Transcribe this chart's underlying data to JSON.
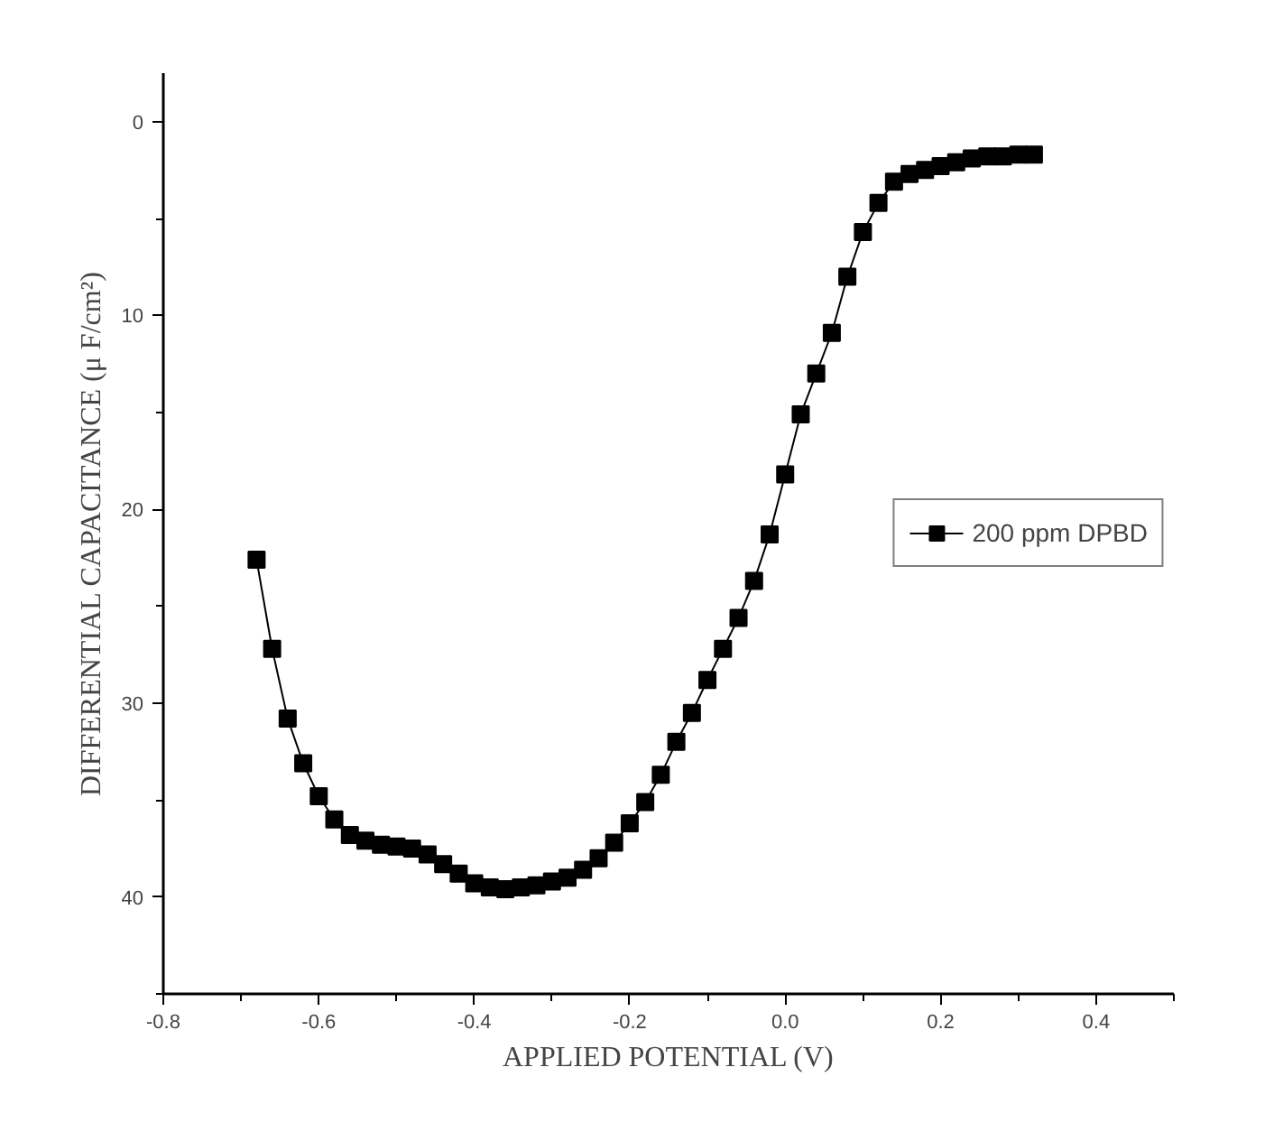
{
  "chart_data": {
    "type": "line",
    "xlabel": "APPLIED POTENTIAL (V)",
    "ylabel": "DIFFERENTIAL CAPACITANCE (μ F/cm²)",
    "x": [
      -0.68,
      -0.66,
      -0.64,
      -0.62,
      -0.6,
      -0.58,
      -0.56,
      -0.54,
      -0.52,
      -0.5,
      -0.48,
      -0.46,
      -0.44,
      -0.42,
      -0.4,
      -0.38,
      -0.36,
      -0.34,
      -0.32,
      -0.3,
      -0.28,
      -0.26,
      -0.24,
      -0.22,
      -0.2,
      -0.18,
      -0.16,
      -0.14,
      -0.12,
      -0.1,
      -0.08,
      -0.06,
      -0.04,
      -0.02,
      0.0,
      0.02,
      0.04,
      0.06,
      0.08,
      0.1,
      0.12,
      0.14,
      0.16,
      0.18,
      0.2,
      0.22,
      0.24,
      0.26,
      0.28,
      0.3,
      0.32
    ],
    "series": [
      {
        "name": "200 ppm DPBD",
        "color": "#000000",
        "values": [
          22.6,
          27.2,
          30.8,
          33.1,
          34.8,
          36.0,
          36.8,
          37.1,
          37.3,
          37.4,
          37.5,
          37.8,
          38.3,
          38.8,
          39.3,
          39.5,
          39.6,
          39.5,
          39.4,
          39.2,
          39.0,
          38.6,
          38.0,
          37.2,
          36.2,
          35.1,
          33.7,
          32.0,
          30.5,
          28.8,
          27.2,
          25.6,
          23.7,
          21.3,
          18.2,
          15.1,
          13.0,
          10.9,
          8.0,
          5.7,
          4.2,
          3.1,
          2.7,
          2.5,
          2.3,
          2.1,
          1.9,
          1.8,
          1.8,
          1.7,
          1.7
        ]
      }
    ],
    "xlim": [
      -0.8,
      0.5
    ],
    "xticks": [
      -0.8,
      -0.6,
      -0.4,
      -0.2,
      {
        "value": 0,
        "label": "0.0"
      },
      0.2,
      0.4
    ],
    "ylim": [
      45,
      -2.5
    ],
    "yticks": [
      0,
      10,
      20,
      30,
      40
    ],
    "marker": "square",
    "line_style": "solid",
    "grid": false,
    "legend": "right"
  }
}
